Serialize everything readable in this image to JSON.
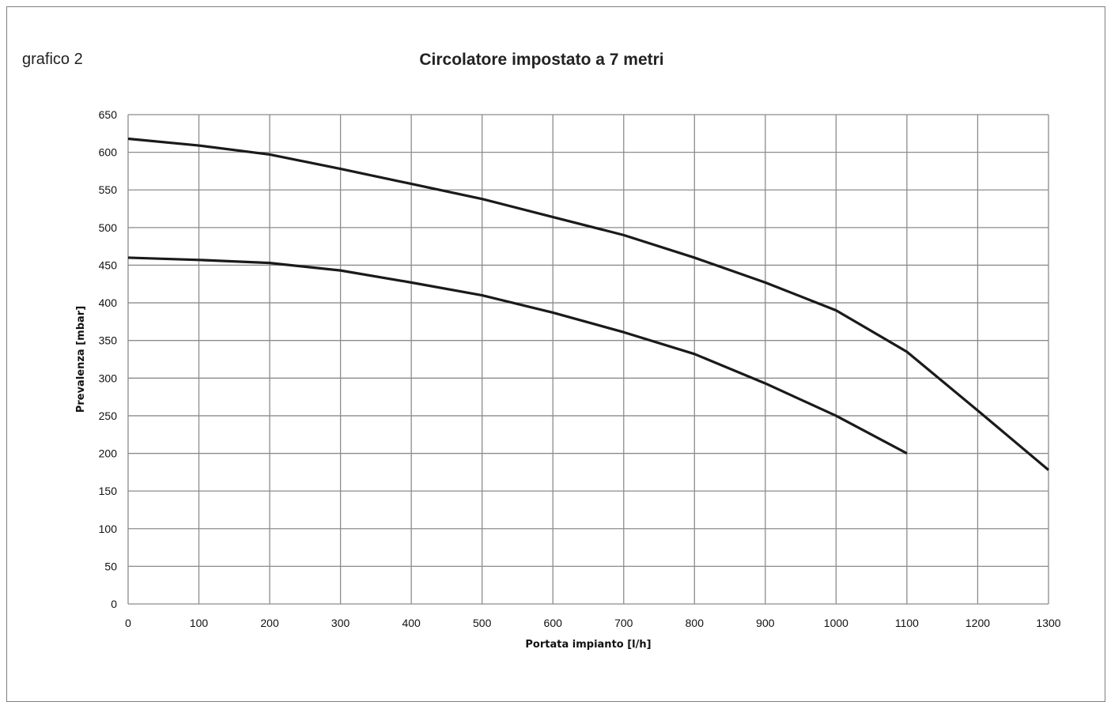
{
  "figure_label": "grafico 2",
  "chart_data": {
    "type": "line",
    "title": "Circolatore impostato a 7 metri",
    "xlabel": "Portata impianto [l/h]",
    "ylabel": "Prevalenza [mbar]",
    "xlim": [
      0,
      1300
    ],
    "ylim": [
      0,
      650
    ],
    "x_ticks": [
      0,
      100,
      200,
      300,
      400,
      500,
      600,
      700,
      800,
      900,
      1000,
      1100,
      1200,
      1300
    ],
    "y_ticks": [
      0,
      50,
      100,
      150,
      200,
      250,
      300,
      350,
      400,
      450,
      500,
      550,
      600,
      650
    ],
    "grid": true,
    "legend": "none",
    "colors": {
      "line": "#1a1a1a",
      "grid": "#8c8c8c"
    },
    "series": [
      {
        "x": [
          0,
          100,
          200,
          300,
          400,
          500,
          600,
          700,
          800,
          900,
          1000,
          1100,
          1200,
          1300
        ],
        "values": [
          618,
          609,
          597,
          578,
          558,
          538,
          514,
          490,
          460,
          427,
          390,
          335,
          257,
          178
        ]
      },
      {
        "x": [
          0,
          100,
          200,
          300,
          400,
          500,
          600,
          700,
          800,
          900,
          1000,
          1100
        ],
        "values": [
          460,
          457,
          453,
          443,
          427,
          410,
          387,
          361,
          332,
          293,
          250,
          200
        ]
      }
    ]
  }
}
